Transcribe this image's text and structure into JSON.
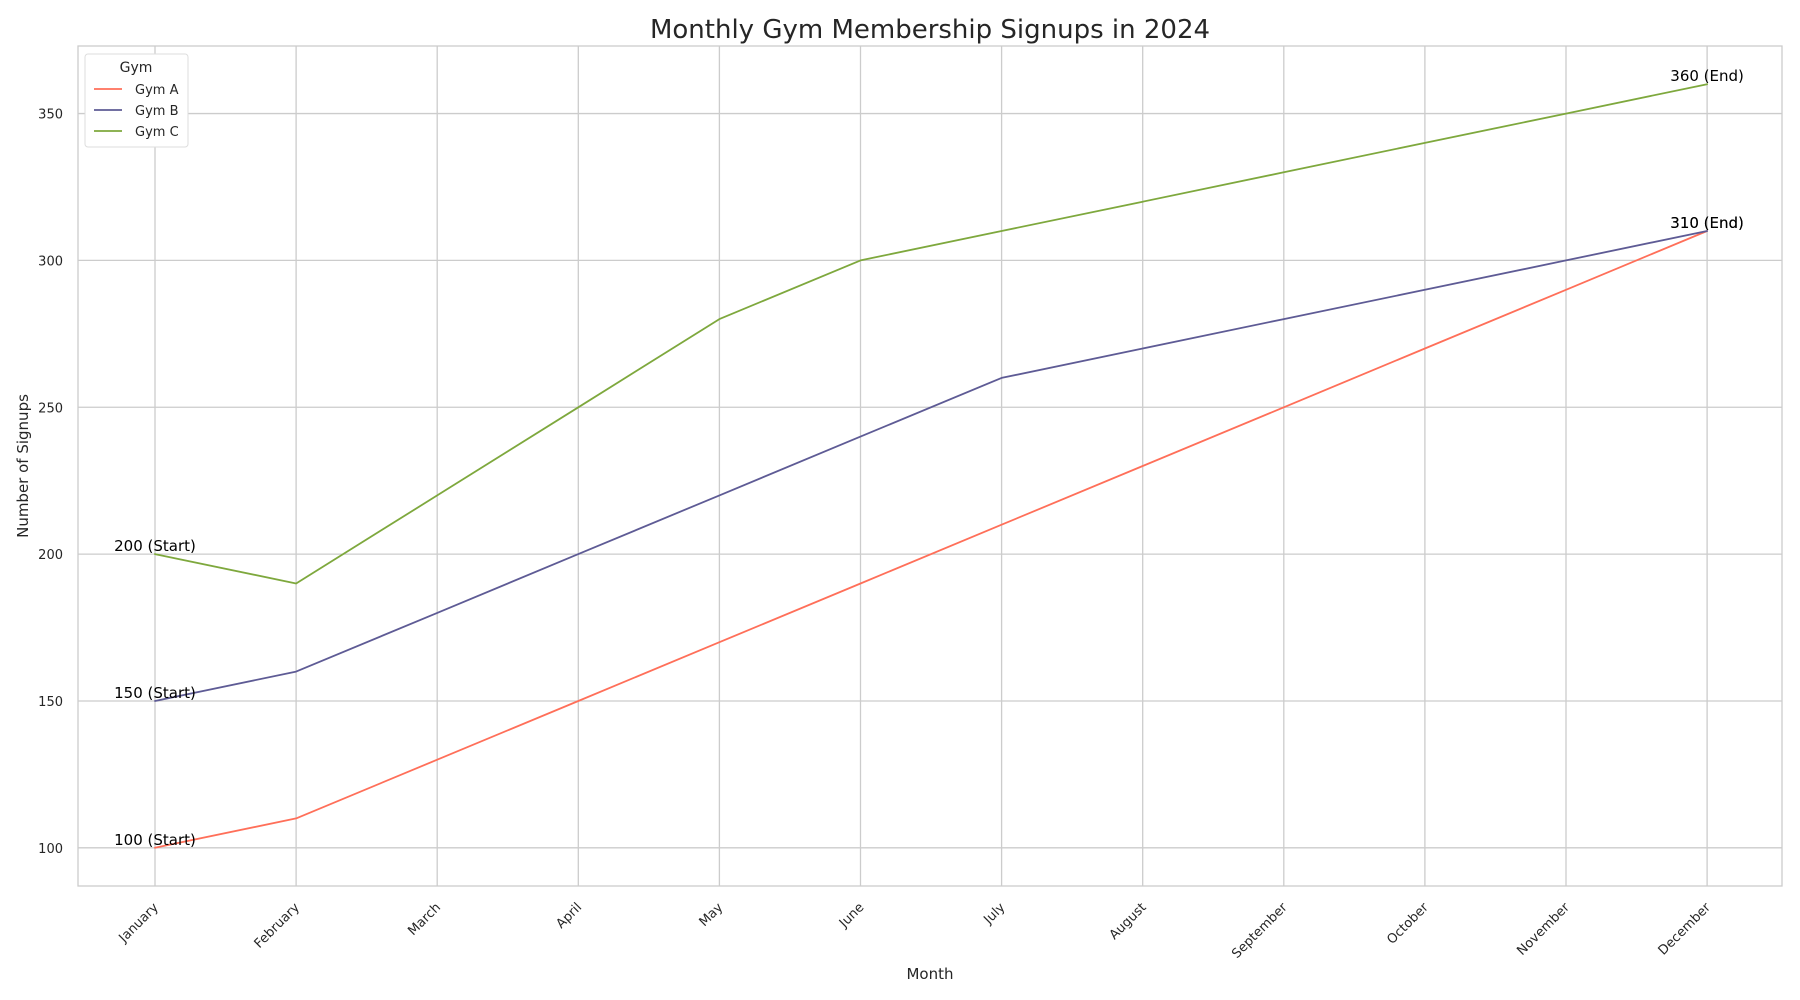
{
  "chart_data": {
    "type": "line",
    "title": "Monthly Gym Membership Signups in 2024",
    "xlabel": "Month",
    "ylabel": "Number of Signups",
    "categories": [
      "January",
      "February",
      "March",
      "April",
      "May",
      "June",
      "July",
      "August",
      "September",
      "October",
      "November",
      "December"
    ],
    "ylim": [
      87,
      373
    ],
    "yticks": [
      100,
      150,
      200,
      250,
      300,
      350
    ],
    "grid": true,
    "legend": {
      "title": "Gym",
      "position": "top-left"
    },
    "series": [
      {
        "name": "Gym A",
        "color": "#ff6f59",
        "values": [
          100,
          110,
          130,
          150,
          170,
          190,
          210,
          230,
          250,
          270,
          290,
          310
        ]
      },
      {
        "name": "Gym B",
        "color": "#5e5b95",
        "values": [
          150,
          160,
          180,
          200,
          220,
          240,
          260,
          270,
          280,
          290,
          300,
          310
        ]
      },
      {
        "name": "Gym C",
        "color": "#7ea83d",
        "values": [
          200,
          190,
          220,
          250,
          280,
          300,
          310,
          320,
          330,
          340,
          350,
          360
        ]
      }
    ],
    "annotations": [
      {
        "series": "Gym A",
        "index": 0,
        "text": "100 (Start)"
      },
      {
        "series": "Gym A",
        "index": 11,
        "text": "310 (End)"
      },
      {
        "series": "Gym B",
        "index": 0,
        "text": "150 (Start)"
      },
      {
        "series": "Gym B",
        "index": 11,
        "text": "310 (End)"
      },
      {
        "series": "Gym C",
        "index": 0,
        "text": "200 (Start)"
      },
      {
        "series": "Gym C",
        "index": 11,
        "text": "360 (End)"
      }
    ]
  }
}
